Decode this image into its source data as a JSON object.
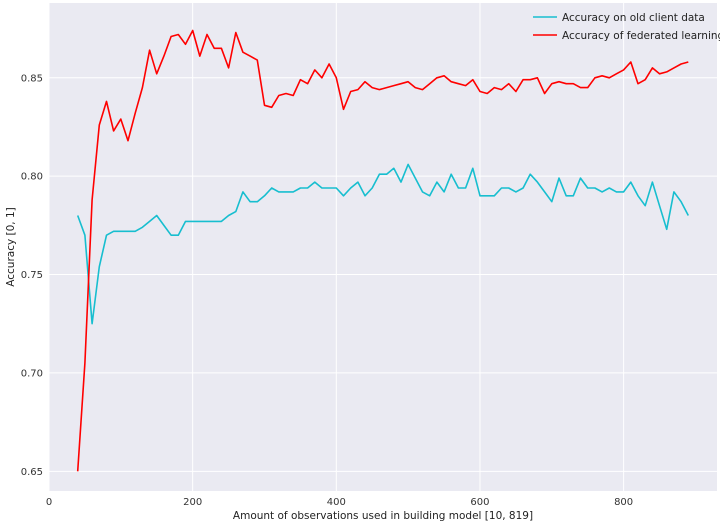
{
  "chart_data": {
    "type": "line",
    "title": "",
    "xlabel": "Amount of observations used in building model [10, 819]",
    "ylabel": "Accuracy [0, 1]",
    "xlim": [
      0,
      930
    ],
    "ylim": [
      0.64,
      0.888
    ],
    "xticks": [
      0,
      200,
      400,
      600,
      800
    ],
    "yticks": [
      0.65,
      0.7,
      0.75,
      0.8,
      0.85
    ],
    "xtick_labels": [
      "0",
      "200",
      "400",
      "600",
      "800"
    ],
    "ytick_labels": [
      "0.65",
      "0.70",
      "0.75",
      "0.80",
      "0.85"
    ],
    "grid": true,
    "background": "#eaeaf2",
    "legend_position": "top-right",
    "series": [
      {
        "name": "Accuracy on old client data",
        "color": "#17becf",
        "x": [
          40,
          50,
          60,
          70,
          80,
          90,
          100,
          110,
          120,
          130,
          140,
          150,
          160,
          170,
          180,
          190,
          200,
          210,
          220,
          230,
          240,
          250,
          260,
          270,
          280,
          290,
          300,
          310,
          320,
          330,
          340,
          350,
          360,
          370,
          380,
          390,
          400,
          410,
          420,
          430,
          440,
          450,
          460,
          470,
          480,
          490,
          500,
          510,
          520,
          530,
          540,
          550,
          560,
          570,
          580,
          590,
          600,
          610,
          620,
          630,
          640,
          650,
          660,
          670,
          680,
          690,
          700,
          710,
          720,
          730,
          740,
          750,
          760,
          770,
          780,
          790,
          800,
          810,
          820,
          830,
          840,
          850,
          860,
          870,
          880,
          890
        ],
        "y": [
          0.78,
          0.77,
          0.725,
          0.754,
          0.77,
          0.772,
          0.772,
          0.772,
          0.772,
          0.774,
          0.777,
          0.78,
          0.775,
          0.77,
          0.77,
          0.777,
          0.777,
          0.777,
          0.777,
          0.777,
          0.777,
          0.78,
          0.782,
          0.792,
          0.787,
          0.787,
          0.79,
          0.794,
          0.792,
          0.792,
          0.792,
          0.794,
          0.794,
          0.797,
          0.794,
          0.794,
          0.794,
          0.79,
          0.794,
          0.797,
          0.79,
          0.794,
          0.801,
          0.801,
          0.804,
          0.797,
          0.806,
          0.799,
          0.792,
          0.79,
          0.797,
          0.792,
          0.801,
          0.794,
          0.794,
          0.804,
          0.79,
          0.79,
          0.79,
          0.794,
          0.794,
          0.792,
          0.794,
          0.801,
          0.797,
          0.792,
          0.787,
          0.799,
          0.79,
          0.79,
          0.799,
          0.794,
          0.794,
          0.792,
          0.794,
          0.792,
          0.792,
          0.797,
          0.79,
          0.785,
          0.797,
          0.785,
          0.773,
          0.792,
          0.787,
          0.78
        ]
      },
      {
        "name": "Accuracy of federated learning",
        "color": "#ff0000",
        "x": [
          40,
          50,
          60,
          70,
          80,
          90,
          100,
          110,
          120,
          130,
          140,
          150,
          160,
          170,
          180,
          190,
          200,
          210,
          220,
          230,
          240,
          250,
          260,
          270,
          280,
          290,
          300,
          310,
          320,
          330,
          340,
          350,
          360,
          370,
          380,
          390,
          400,
          410,
          420,
          430,
          440,
          450,
          460,
          470,
          480,
          490,
          500,
          510,
          520,
          530,
          540,
          550,
          560,
          570,
          580,
          590,
          600,
          610,
          620,
          630,
          640,
          650,
          660,
          670,
          680,
          690,
          700,
          710,
          720,
          730,
          740,
          750,
          760,
          770,
          780,
          790,
          800,
          810,
          820,
          830,
          840,
          850,
          860,
          870,
          880,
          890
        ],
        "y": [
          0.65,
          0.705,
          0.788,
          0.826,
          0.838,
          0.823,
          0.829,
          0.818,
          0.832,
          0.845,
          0.864,
          0.852,
          0.861,
          0.871,
          0.872,
          0.867,
          0.874,
          0.861,
          0.872,
          0.865,
          0.865,
          0.855,
          0.873,
          0.863,
          0.861,
          0.859,
          0.836,
          0.835,
          0.841,
          0.842,
          0.841,
          0.849,
          0.847,
          0.854,
          0.85,
          0.857,
          0.85,
          0.834,
          0.843,
          0.844,
          0.848,
          0.845,
          0.844,
          0.845,
          0.846,
          0.847,
          0.848,
          0.845,
          0.844,
          0.847,
          0.85,
          0.851,
          0.848,
          0.847,
          0.846,
          0.849,
          0.843,
          0.842,
          0.845,
          0.844,
          0.847,
          0.843,
          0.849,
          0.849,
          0.85,
          0.842,
          0.847,
          0.848,
          0.847,
          0.847,
          0.845,
          0.845,
          0.85,
          0.851,
          0.85,
          0.852,
          0.854,
          0.858,
          0.847,
          0.849,
          0.855,
          0.852,
          0.853,
          0.855,
          0.857,
          0.858
        ]
      }
    ]
  }
}
